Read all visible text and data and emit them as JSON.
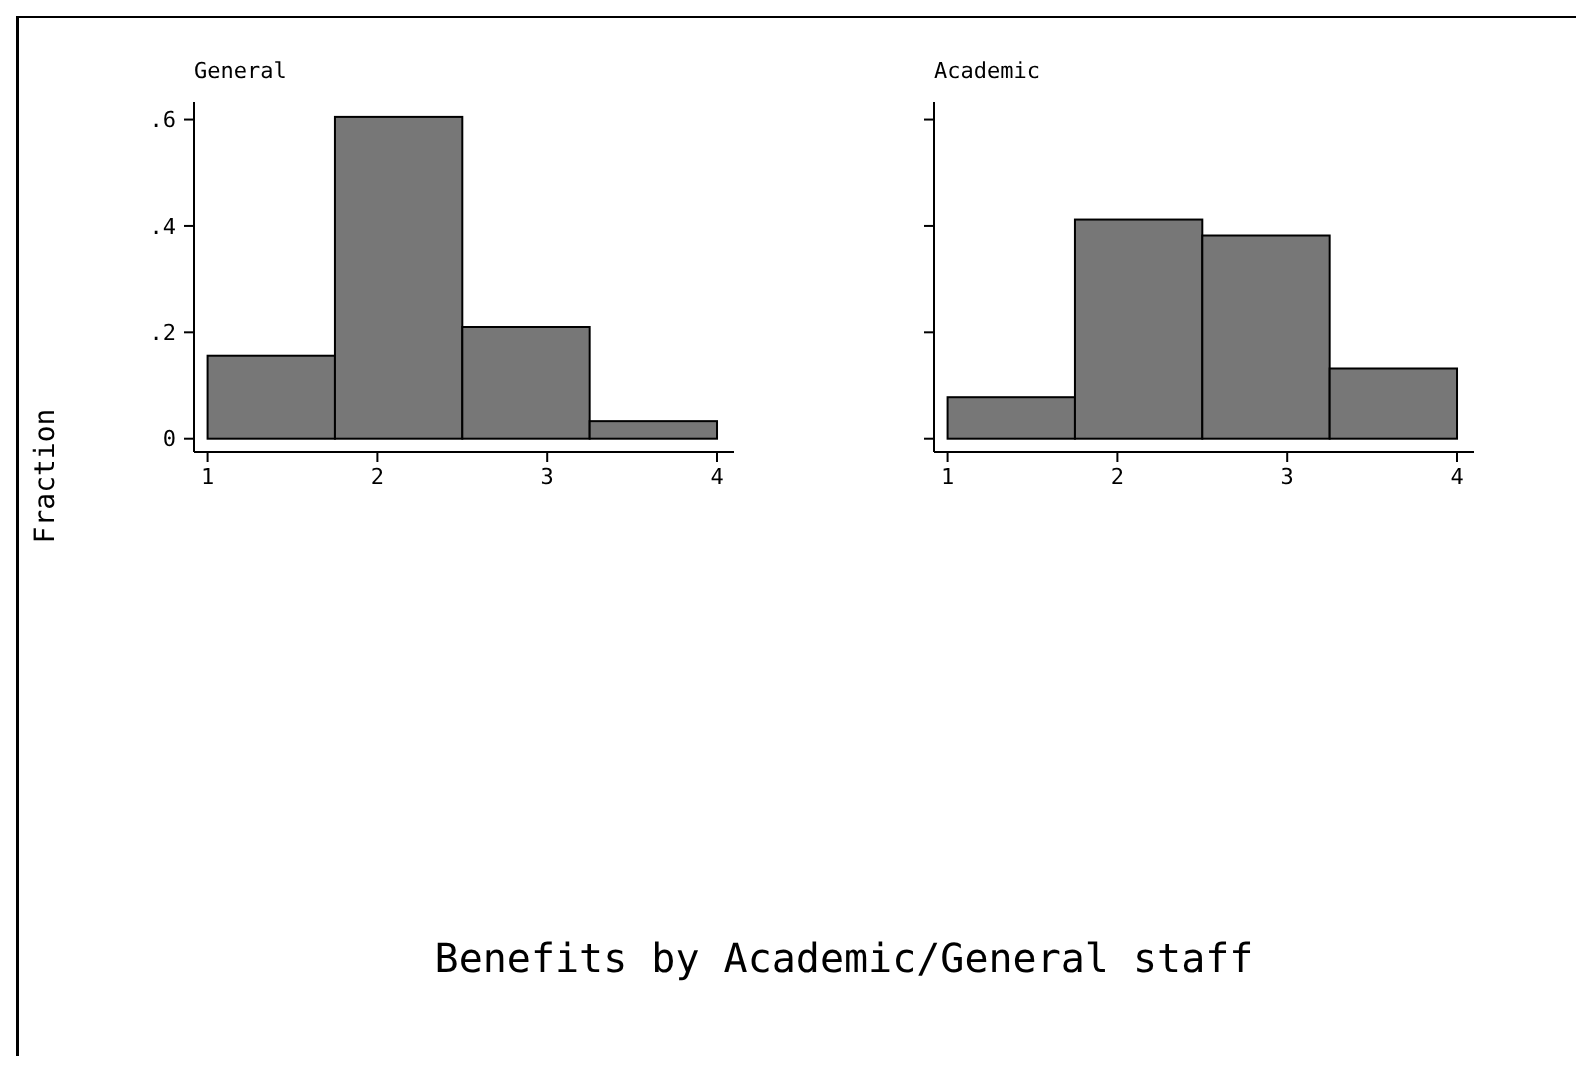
{
  "chart_data": [
    {
      "type": "histogram",
      "title": "General",
      "ylabel": "Fraction",
      "xlabel": "Benefits by Academic/General staff",
      "bins": [
        1,
        1.75,
        2.5,
        3.25,
        4
      ],
      "values": [
        0.156,
        0.605,
        0.21,
        0.033
      ],
      "color": "#777777",
      "xlim": [
        0.92,
        4.1
      ],
      "ylim": [
        -0.025,
        0.633
      ],
      "xticks": [
        1,
        2,
        3,
        4
      ],
      "yticks": [
        0,
        {
          "value": 0.2,
          "label": ".2"
        },
        {
          "value": 0.4,
          "label": ".4"
        },
        {
          "value": 0.6,
          "label": ".6"
        }
      ]
    },
    {
      "type": "histogram",
      "title": "Academic",
      "bins": [
        1,
        1.75,
        2.5,
        3.25,
        4
      ],
      "values": [
        0.078,
        0.412,
        0.382,
        0.132
      ],
      "color": "#777777",
      "xlim": [
        0.92,
        4.1
      ],
      "ylim": [
        -0.025,
        0.633
      ],
      "xticks": [
        1,
        2,
        3,
        4
      ],
      "yticks": [
        {
          "value": 0,
          "label": null
        },
        {
          "value": 0.2,
          "label": null
        },
        {
          "value": 0.4,
          "label": null
        },
        {
          "value": 0.6,
          "label": null
        }
      ],
      "tick_labels": "x"
    }
  ]
}
